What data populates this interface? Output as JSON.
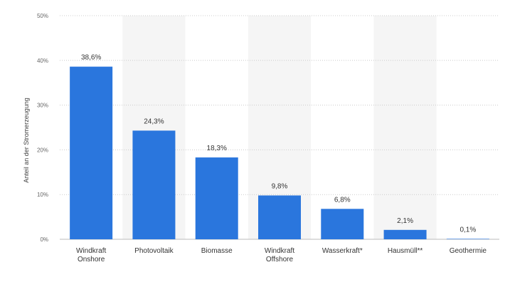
{
  "chart_data": {
    "type": "bar",
    "title": "",
    "xlabel": "",
    "ylabel": "Anteil an der Stromerzeugung",
    "ylim": [
      0,
      50
    ],
    "yticks": [
      0,
      10,
      20,
      30,
      40,
      50
    ],
    "ytick_labels": [
      "0%",
      "10%",
      "20%",
      "30%",
      "40%",
      "50%"
    ],
    "categories": [
      [
        "Windkraft",
        "Onshore"
      ],
      [
        "Photovoltaik"
      ],
      [
        "Biomasse"
      ],
      [
        "Windkraft",
        "Offshore"
      ],
      [
        "Wasserkraft*"
      ],
      [
        "Hausmüll**"
      ],
      [
        "Geothermie"
      ]
    ],
    "values": [
      38.6,
      24.3,
      18.3,
      9.8,
      6.8,
      2.1,
      0.1
    ],
    "data_labels": [
      "38,6%",
      "24,3%",
      "18,3%",
      "9,8%",
      "6,8%",
      "2,1%",
      "0,1%"
    ],
    "grid": true,
    "colors": {
      "bar": "#2a76dd",
      "band": "#f5f5f5",
      "grid": "#cccccc"
    }
  }
}
